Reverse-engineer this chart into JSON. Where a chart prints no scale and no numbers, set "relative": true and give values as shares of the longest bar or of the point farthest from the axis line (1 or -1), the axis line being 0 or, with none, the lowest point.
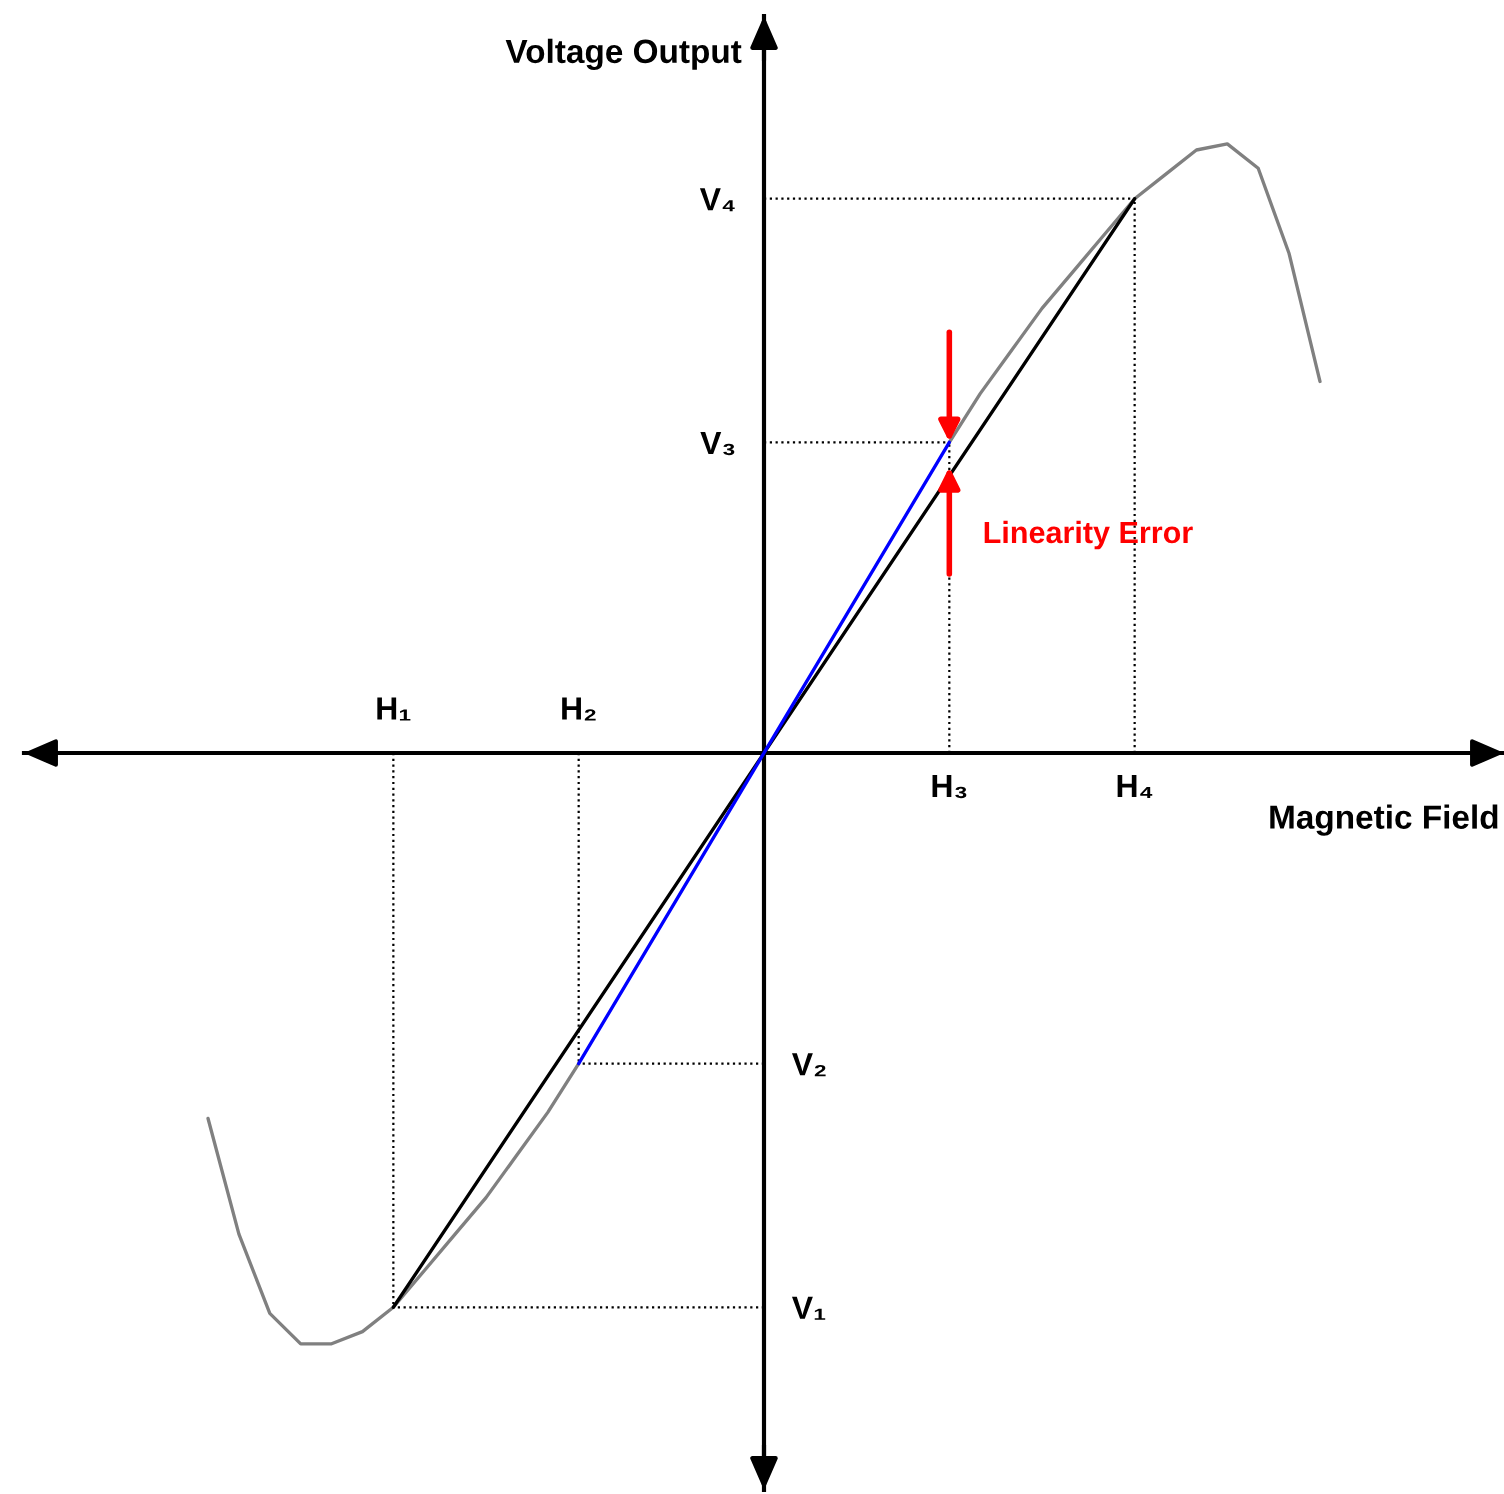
{
  "chart_data": {
    "type": "line",
    "relative": true,
    "xlabel": "Magnetic Field",
    "ylabel": "Voltage Output",
    "categories": [
      null,
      null,
      null,
      null,
      null,
      null,
      "H₁",
      null,
      null,
      null,
      null,
      null,
      "H₂",
      null,
      null,
      null,
      null,
      null,
      null,
      null,
      null,
      null,
      null,
      null,
      "H₃",
      null,
      null,
      null,
      null,
      null,
      "H₄",
      null,
      null,
      null,
      null,
      null,
      null
    ],
    "series": [
      {
        "color": "#808080",
        "line_style": "solid",
        "values": [
          -0.6,
          -0.79,
          -0.92,
          -0.97,
          -0.97,
          -0.95,
          -0.91,
          -0.85,
          -0.79,
          -0.73,
          -0.66,
          -0.59,
          -0.51,
          null,
          null,
          null,
          null,
          null,
          null,
          null,
          null,
          null,
          null,
          null,
          0.51,
          0.59,
          0.66,
          0.73,
          0.79,
          0.85,
          0.91,
          0.95,
          0.99,
          1.0,
          0.96,
          0.82,
          0.61
        ]
      },
      {
        "color": "#000000",
        "line_style": "solid",
        "x": [
          "H₁",
          "H₄"
        ],
        "values": [
          -0.91,
          0.91
        ]
      },
      {
        "color": "#0000ff",
        "line_style": "solid",
        "x": [
          "H₂",
          "H₃"
        ],
        "values": [
          -0.51,
          0.51
        ]
      }
    ],
    "ref_lines": [
      {
        "axis": "x",
        "value": "H₁",
        "color": "#000000",
        "line_style": "dotted"
      },
      {
        "axis": "x",
        "value": "H₂",
        "color": "#000000",
        "line_style": "dotted"
      },
      {
        "axis": "x",
        "value": "H₃",
        "color": "#000000",
        "line_style": "dotted"
      },
      {
        "axis": "x",
        "value": "H₄",
        "color": "#000000",
        "line_style": "dotted"
      },
      {
        "axis": "y",
        "value": -0.91,
        "label": "V₁",
        "color": "#000000",
        "line_style": "dotted"
      },
      {
        "axis": "y",
        "value": -0.51,
        "label": "V₂",
        "color": "#000000",
        "line_style": "dotted"
      },
      {
        "axis": "y",
        "value": 0.51,
        "label": "V₃",
        "color": "#000000",
        "line_style": "dotted"
      },
      {
        "axis": "y",
        "value": 0.91,
        "label": "V₄",
        "color": "#000000",
        "line_style": "dotted"
      }
    ],
    "annotations": [
      {
        "text": "Linearity Error",
        "x": "H₃",
        "y": 0.49
      }
    ]
  }
}
